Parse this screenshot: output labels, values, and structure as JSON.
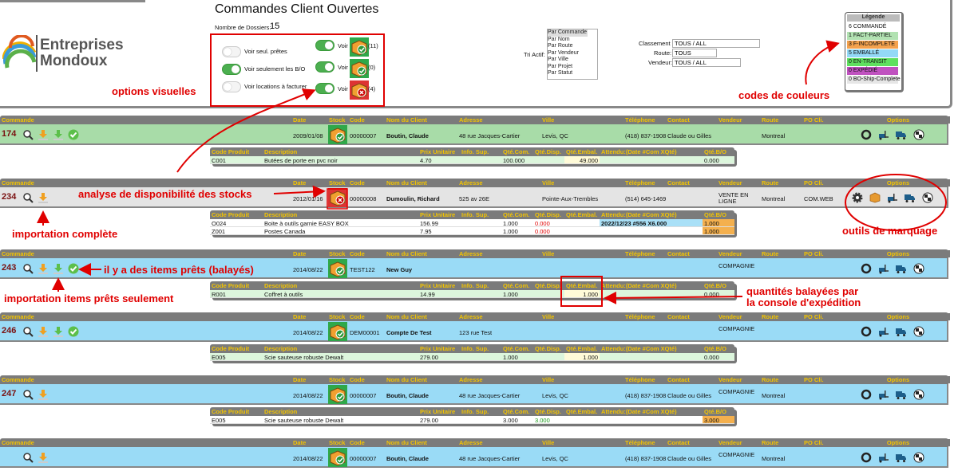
{
  "header": {
    "title": "Commandes Client Ouvertes",
    "dossiers_label": "Nombre de Dossiers:",
    "dossiers_count": "15"
  },
  "logo": {
    "line1": "Entreprises",
    "line2": "Mondoux"
  },
  "toggles": [
    {
      "label": "Voir seul. prêtes"
    },
    {
      "label": "Voir seulement les B/O"
    },
    {
      "label": "Voir locations à facturer"
    }
  ],
  "voir": [
    {
      "label": "Voir",
      "count": "(11)"
    },
    {
      "label": "Voir",
      "count": "(0)"
    },
    {
      "label": "Voir",
      "count": "(4)"
    }
  ],
  "tri": {
    "label": "Tri Actif:",
    "options": [
      "Par Commande",
      "Par Nom",
      "Par Route",
      "Par Vendeur",
      "Par Ville",
      "Par Projet",
      "Par Statut"
    ]
  },
  "filters": [
    {
      "label": "Classement",
      "value": "TOUS / ALL"
    },
    {
      "label": "Route:",
      "value": "TOUS"
    },
    {
      "label": "Vendeur:",
      "value": "TOUS / ALL"
    }
  ],
  "legend": {
    "title": "Légende",
    "items": [
      {
        "text": "6 COMMANDÉ",
        "color": "#ffffff"
      },
      {
        "text": "1 FACT-PARTIEL",
        "color": "#b2e2b2"
      },
      {
        "text": "3 F-INCOMPLETE",
        "color": "#f4a24e"
      },
      {
        "text": "5 EMBALLÉ",
        "color": "#93d9f7"
      },
      {
        "text": "0 EN-TRANSIT",
        "color": "#5fe05f"
      },
      {
        "text": "0 EXPÉDIÉ",
        "color": "#c052c0"
      },
      {
        "text": "0 BO-Ship-Complete",
        "color": "#e6e6e6"
      }
    ]
  },
  "order_columns": [
    "Commande",
    "Date",
    "Stock",
    "Code",
    "Nom du Client",
    "Adresse",
    "Ville",
    "Téléphone",
    "Contact",
    "Vendeur",
    "Route",
    "PO Cli.",
    "Options"
  ],
  "item_columns": [
    "Code Produit",
    "Description",
    "Prix Unitaire",
    "Info. Sup.",
    "Qté.Com.",
    "Qté.Disp.",
    "Qté.Embal.",
    "Attendu:(Date #Com XQté)",
    "Qté.B/O"
  ],
  "orders": [
    {
      "number": "174",
      "date": "2009/01/08",
      "code": "00000007",
      "client": "Boutin, Claude",
      "address": "48 rue Jacques-Cartier",
      "city": "Levis, QC",
      "phone": "(418) 837-1908",
      "contact": "Claude ou Gilles",
      "vendeur": null,
      "route": "Montreal",
      "po": null,
      "color": "#a8dca8",
      "items": [
        {
          "code": "C001",
          "description": "Butées de porte en pvc noir",
          "price": "4.70",
          "info": null,
          "qty_com": "100.000",
          "qty_disp": null,
          "qty_embal": "49.000",
          "attendu": null,
          "qty_bo": "0.000",
          "color": "#dcf6dc",
          "embal_color": "#fffbd8"
        }
      ]
    },
    {
      "number": "234",
      "date": "2012/01/16",
      "code": "00000008",
      "client": "Dumoulin, Richard",
      "address": "525 av 26E",
      "city": "Pointe-Aux-Trembles",
      "phone": "(514) 645-1469",
      "contact": null,
      "vendeur": "VENTE EN LIGNE",
      "route": "Montreal",
      "po": "COM.WEB",
      "color": "#e4e4e4",
      "items": [
        {
          "code": "O024",
          "description": "Boite à outils garnie EASY BOX",
          "price": "156.99",
          "info": null,
          "qty_com": "1.000",
          "qty_disp": "0.000",
          "qty_embal": null,
          "attendu": "2022/12/23 #556 X6.000",
          "qty_bo": "1.000",
          "color": "#ffffff",
          "disp_text": "#e00000",
          "attendu_color": "#a9e0f7",
          "bo_color": "#f4b04e"
        },
        {
          "code": "Z001",
          "description": "Postes Canada",
          "price": "7.95",
          "info": null,
          "qty_com": "1.000",
          "qty_disp": "0.000",
          "qty_embal": null,
          "attendu": null,
          "qty_bo": "1.000",
          "color": "#ffffff",
          "disp_text": "#e00000",
          "bo_color": "#f4b04e"
        }
      ]
    },
    {
      "number": "243",
      "date": "2014/08/22",
      "code": "TEST122",
      "client": "New Guy",
      "address": null,
      "city": null,
      "phone": null,
      "contact": null,
      "vendeur": "COMPAGNIE",
      "route": null,
      "po": null,
      "color": "#9adbf6",
      "items": [
        {
          "code": "R001",
          "description": "Coffret à outils",
          "price": "14.99",
          "info": null,
          "qty_com": "1.000",
          "qty_disp": null,
          "qty_embal": "1.000",
          "attendu": null,
          "qty_bo": "0.000",
          "color": "#dcf6dc",
          "embal_color": "#fffbd8"
        }
      ]
    },
    {
      "number": "246",
      "date": "2014/08/22",
      "code": "DEM00001",
      "client": "Compte De Test",
      "address": "123 rue Test",
      "city": null,
      "phone": null,
      "contact": null,
      "vendeur": "COMPAGNIE",
      "route": null,
      "po": null,
      "color": "#9adbf6",
      "items": [
        {
          "code": "E005",
          "description": "Scie sauteuse robuste Dewalt",
          "price": "279.00",
          "info": null,
          "qty_com": "1.000",
          "qty_disp": null,
          "qty_embal": "1.000",
          "attendu": null,
          "qty_bo": "0.000",
          "color": "#dcf6dc",
          "embal_color": "#fffbd8"
        }
      ]
    },
    {
      "number": "247",
      "date": "2014/08/22",
      "code": "00000007",
      "client": "Boutin, Claude",
      "address": "48 rue Jacques-Cartier",
      "city": "Levis, QC",
      "phone": "(418) 837-1908",
      "contact": "Claude ou Gilles",
      "vendeur": "COMPAGNIE",
      "route": "Montreal",
      "po": null,
      "color": "#9adbf6",
      "items": [
        {
          "code": "E005",
          "description": "Scie sauteuse robuste Dewalt",
          "price": "279.00",
          "info": null,
          "qty_com": "3.000",
          "qty_disp": "3.000",
          "qty_embal": null,
          "attendu": null,
          "qty_bo": "3.000",
          "color": "#ffffff",
          "disp_text": "#1a9a1a",
          "bo_color": "#f4b04e"
        }
      ]
    },
    {
      "number": null,
      "date": "2014/08/22",
      "code": "00000007",
      "client": "Boutin, Claude",
      "address": "48 rue Jacques-Cartier",
      "city": "Levis, QC",
      "phone": "(418) 837-1908",
      "contact": "Claude ou Gilles",
      "vendeur": "COMPAGNIE",
      "route": "Montreal",
      "po": null,
      "color": "#9adbf6",
      "items": []
    }
  ],
  "annotations": {
    "options": "options visuelles",
    "codes": "codes de couleurs",
    "stock": "analyse de disponibilité des stocks",
    "import_all": "importation complète",
    "tools": "outils de marquage",
    "ready": "il y a des items prêts (balayés)",
    "import_ready": "importation items prêts seulement",
    "scanned1": "quantités balayées par",
    "scanned2": "la console d'expédition"
  }
}
